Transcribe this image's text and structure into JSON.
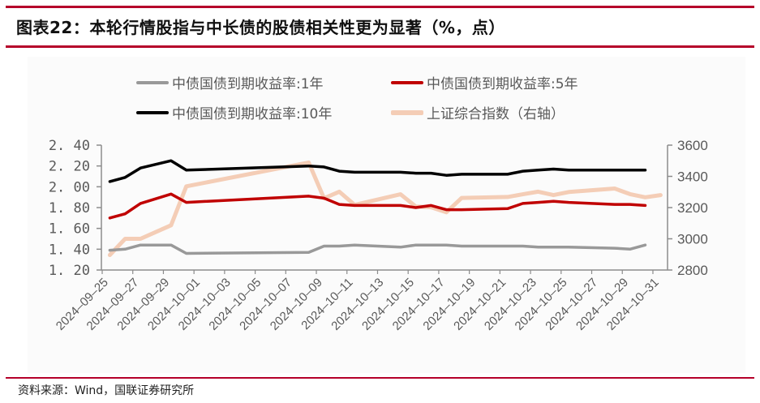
{
  "header": {
    "title": "图表22：本轮行情股指与中长债的股债相关性更为显著（%，点）"
  },
  "footer": {
    "source": "资料来源：Wind，国联证券研究所"
  },
  "colors": {
    "rule": "#b5002a",
    "axis": "#8c8c8c",
    "tick_text": "#595959"
  },
  "legend": [
    {
      "label": "中债国债到期收益率:1年",
      "color": "#999999"
    },
    {
      "label": "中债国债到期收益率:5年",
      "color": "#c00000"
    },
    {
      "label": "中债国债到期收益率:10年",
      "color": "#000000"
    },
    {
      "label": "上证综合指数（右轴）",
      "color": "#f4cdb6"
    }
  ],
  "chart_data": {
    "type": "line",
    "title": "本轮行情股指与中长债的股债相关性更为显著（%，点）",
    "xlabel": "",
    "ylabel": "%",
    "y2label": "点",
    "ylim": [
      1.2,
      2.4
    ],
    "y2lim": [
      2800,
      3600
    ],
    "yticks": [
      "2.40",
      "2.20",
      "2.00",
      "1.80",
      "1.60",
      "1.40",
      "1.20"
    ],
    "y2ticks": [
      "3600",
      "3400",
      "3200",
      "3000",
      "2800"
    ],
    "xticks": [
      "2024-09-25",
      "2024-09-27",
      "2024-09-29",
      "2024-10-01",
      "2024-10-03",
      "2024-10-05",
      "2024-10-07",
      "2024-10-09",
      "2024-10-11",
      "2024-10-13",
      "2024-10-15",
      "2024-10-17",
      "2024-10-19",
      "2024-10-21",
      "2024-10-23",
      "2024-10-25",
      "2024-10-27",
      "2024-10-29",
      "2024-10-31"
    ],
    "grid": false,
    "legend_position": "top",
    "x": [
      "2024-09-25",
      "2024-09-26",
      "2024-09-27",
      "2024-09-29",
      "2024-09-30",
      "2024-10-08",
      "2024-10-09",
      "2024-10-10",
      "2024-10-11",
      "2024-10-14",
      "2024-10-15",
      "2024-10-16",
      "2024-10-17",
      "2024-10-18",
      "2024-10-21",
      "2024-10-22",
      "2024-10-23",
      "2024-10-24",
      "2024-10-25",
      "2024-10-28",
      "2024-10-29",
      "2024-10-30",
      "2024-10-31"
    ],
    "series": [
      {
        "name": "中债国债到期收益率:1年",
        "axis": "left",
        "color": "#999999",
        "values": [
          1.39,
          1.4,
          1.44,
          1.44,
          1.36,
          1.37,
          1.43,
          1.43,
          1.44,
          1.42,
          1.44,
          1.44,
          1.44,
          1.43,
          1.43,
          1.43,
          1.42,
          1.42,
          1.42,
          1.41,
          1.4,
          1.44,
          null
        ]
      },
      {
        "name": "中债国债到期收益率:5年",
        "axis": "left",
        "color": "#c00000",
        "values": [
          1.7,
          1.74,
          1.84,
          1.93,
          1.85,
          1.91,
          1.89,
          1.83,
          1.82,
          1.82,
          1.8,
          1.82,
          1.78,
          1.78,
          1.79,
          1.84,
          1.85,
          1.86,
          1.85,
          1.83,
          1.83,
          1.82,
          null
        ]
      },
      {
        "name": "中债国债到期收益率:10年",
        "axis": "left",
        "color": "#000000",
        "values": [
          2.05,
          2.09,
          2.18,
          2.25,
          2.16,
          2.2,
          2.19,
          2.15,
          2.14,
          2.14,
          2.13,
          2.13,
          2.11,
          2.12,
          2.12,
          2.15,
          2.16,
          2.17,
          2.16,
          2.16,
          2.16,
          2.16,
          null
        ]
      },
      {
        "name": "上证综合指数（右轴）",
        "axis": "right",
        "color": "#f4cdb6",
        "values": [
          2896,
          3000,
          3000,
          3087,
          3336,
          3489,
          3259,
          3302,
          3217,
          3285,
          3207,
          3202,
          3170,
          3262,
          3268,
          3285,
          3302,
          3280,
          3300,
          3322,
          3286,
          3266,
          3280
        ]
      }
    ]
  }
}
